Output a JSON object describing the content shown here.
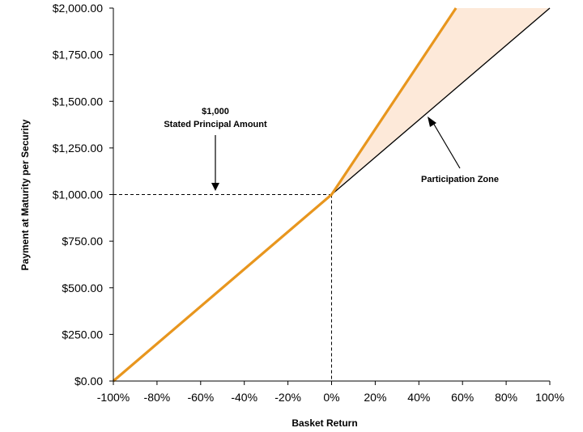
{
  "chart_data": {
    "type": "line",
    "xlabel": "Basket Return",
    "ylabel": "Payment at Maturity per Security",
    "xlim": [
      -100,
      100
    ],
    "ylim": [
      0,
      2000
    ],
    "x_ticks": [
      -100,
      -80,
      -60,
      -40,
      -20,
      0,
      20,
      40,
      60,
      80,
      100
    ],
    "x_tick_labels": [
      "-100%",
      "-80%",
      "-60%",
      "-40%",
      "-20%",
      "0%",
      "20%",
      "40%",
      "60%",
      "80%",
      "100%"
    ],
    "y_ticks": [
      0,
      250,
      500,
      750,
      1000,
      1250,
      1500,
      1750,
      2000
    ],
    "y_tick_labels": [
      "$0.00",
      "$250.00",
      "$500.00",
      "$750.00",
      "$1,000.00",
      "$1,250.00",
      "$1,500.00",
      "$1,750.00",
      "$2,000.00"
    ],
    "grid": false,
    "series": [
      {
        "color": "#e8961e",
        "x": [
          -100,
          0,
          57
        ],
        "y": [
          0,
          1000,
          2000
        ]
      },
      {
        "color": "#000000",
        "x": [
          0,
          100
        ],
        "y": [
          1000,
          2000
        ]
      }
    ],
    "shaded_region": {
      "color": "#fde9d9",
      "x": [
        0,
        57,
        100
      ],
      "y_upper": [
        1000,
        2000,
        2000
      ],
      "y_lower": [
        1000,
        1570,
        2000
      ]
    },
    "reference_point": {
      "x": 0,
      "y": 1000
    },
    "annotations": {
      "principal_value": "$1,000",
      "principal_label": "Stated Principal Amount",
      "participation_label": "Participation Zone"
    }
  }
}
